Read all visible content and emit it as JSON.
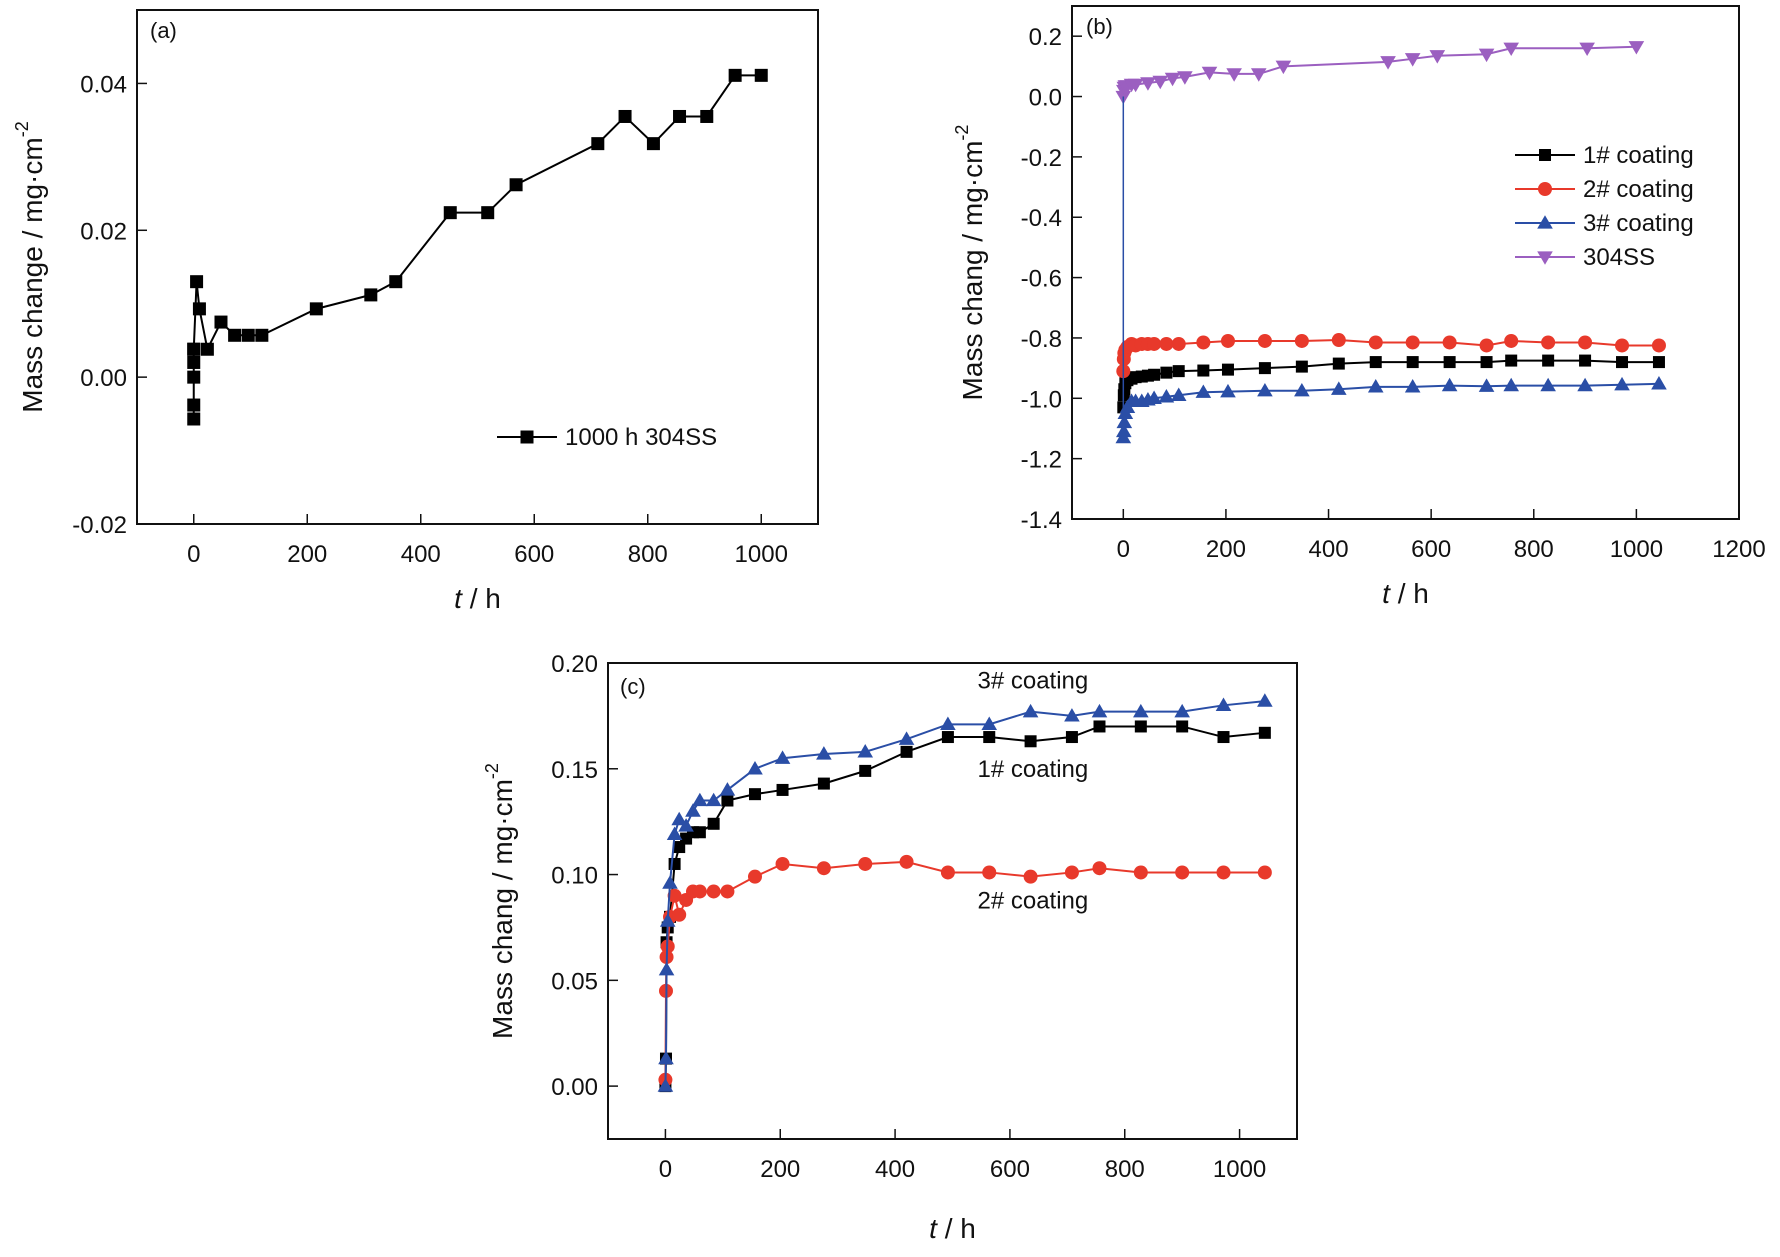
{
  "chart_data": [
    {
      "id": "a",
      "type": "line",
      "panel_label": "(a)",
      "xlabel_italic": "t",
      "xlabel_rest": " / h",
      "ylabel": "Mass change / mg·cm",
      "ylabel_sup": "-2",
      "xlim": [
        -100,
        1100
      ],
      "ylim": [
        -0.02,
        0.05
      ],
      "xticks": [
        0,
        200,
        400,
        600,
        800,
        1000
      ],
      "xtick_labels": [
        "0",
        "200",
        "400",
        "600",
        "800",
        "1000"
      ],
      "yticks": [
        -0.02,
        0.0,
        0.02,
        0.04
      ],
      "ytick_labels": [
        "-0.02",
        "0.00",
        "0.02",
        "0.04"
      ],
      "grid": false,
      "legend_position": "bottom-right",
      "series": [
        {
          "name": "1000 h 304SS",
          "color": "#000000",
          "marker": "square",
          "x": [
            0,
            0,
            0,
            0,
            0,
            0,
            5,
            10,
            24,
            48,
            72,
            96,
            120,
            216,
            312,
            356,
            452,
            518,
            568,
            712,
            760,
            810,
            856,
            904,
            954,
            1000
          ],
          "y": [
            -0.0057,
            -0.0038,
            0.0,
            0.002,
            0.0038,
            0.0038,
            0.013,
            0.0093,
            0.0038,
            0.0075,
            0.0057,
            0.0057,
            0.0057,
            0.0093,
            0.0112,
            0.013,
            0.0224,
            0.0224,
            0.0262,
            0.0318,
            0.0355,
            0.0318,
            0.0355,
            0.0355,
            0.0411,
            0.0411
          ]
        }
      ]
    },
    {
      "id": "b",
      "type": "line",
      "panel_label": "(b)",
      "xlabel_italic": "t",
      "xlabel_rest": " / h",
      "ylabel": "Mass chang / mg·cm",
      "ylabel_sup": "-2",
      "xlim": [
        -100,
        1200
      ],
      "ylim": [
        -1.4,
        0.3
      ],
      "xticks": [
        0,
        200,
        400,
        600,
        800,
        1000,
        1200
      ],
      "xtick_labels": [
        "0",
        "200",
        "400",
        "600",
        "800",
        "1000",
        "1200"
      ],
      "yticks": [
        -1.4,
        -1.2,
        -1.0,
        -0.8,
        -0.6,
        -0.4,
        -0.2,
        0.0,
        0.2
      ],
      "ytick_labels": [
        "-1.4",
        "-1.2",
        "-1.0",
        "-0.8",
        "-0.6",
        "-0.4",
        "-0.2",
        "0.0",
        "0.2"
      ],
      "grid": false,
      "legend_position": "center-right",
      "series": [
        {
          "name": "1# coating",
          "color": "#000000",
          "marker": "square",
          "x": [
            0,
            1,
            2,
            4,
            8,
            16,
            24,
            36,
            48,
            60,
            84,
            108,
            156,
            204,
            276,
            348,
            420,
            492,
            564,
            636,
            708,
            756,
            828,
            900,
            972,
            1044
          ],
          "y": [
            -1.03,
            -0.99,
            -0.97,
            -0.95,
            -0.94,
            -0.935,
            -0.93,
            -0.928,
            -0.925,
            -0.922,
            -0.915,
            -0.91,
            -0.908,
            -0.905,
            -0.9,
            -0.895,
            -0.885,
            -0.88,
            -0.88,
            -0.88,
            -0.88,
            -0.875,
            -0.875,
            -0.875,
            -0.88,
            -0.88
          ]
        },
        {
          "name": "2# coating",
          "color": "#e8392b",
          "marker": "circle",
          "x": [
            0,
            1,
            2,
            4,
            8,
            16,
            24,
            36,
            48,
            60,
            84,
            108,
            156,
            204,
            276,
            348,
            420,
            492,
            564,
            636,
            708,
            756,
            828,
            900,
            972,
            1044
          ],
          "y": [
            -0.91,
            -0.87,
            -0.85,
            -0.84,
            -0.83,
            -0.82,
            -0.825,
            -0.82,
            -0.82,
            -0.82,
            -0.82,
            -0.82,
            -0.815,
            -0.81,
            -0.81,
            -0.81,
            -0.807,
            -0.815,
            -0.815,
            -0.815,
            -0.825,
            -0.81,
            -0.815,
            -0.815,
            -0.825,
            -0.825
          ]
        },
        {
          "name": "3# coating",
          "color": "#2a4ea6",
          "marker": "triangle-up",
          "x": [
            0,
            1,
            2,
            4,
            8,
            16,
            24,
            36,
            48,
            60,
            84,
            108,
            156,
            204,
            276,
            348,
            420,
            492,
            564,
            636,
            708,
            756,
            828,
            900,
            972,
            1044
          ],
          "y": [
            -1.13,
            -1.11,
            -1.08,
            -1.05,
            -1.03,
            -1.01,
            -1.01,
            -1.01,
            -1.005,
            -1.0,
            -0.995,
            -0.99,
            -0.98,
            -0.978,
            -0.975,
            -0.975,
            -0.97,
            -0.962,
            -0.962,
            -0.958,
            -0.96,
            -0.958,
            -0.958,
            -0.958,
            -0.955,
            -0.952
          ]
        },
        {
          "name": "304SS",
          "color": "#9b5fc0",
          "marker": "triangle-down",
          "x": [
            0,
            1,
            2,
            4,
            8,
            16,
            24,
            48,
            72,
            96,
            120,
            168,
            216,
            264,
            312,
            516,
            564,
            612,
            708,
            756,
            904,
            1000
          ],
          "y": [
            0.0,
            0.02,
            0.03,
            0.035,
            0.035,
            0.04,
            0.04,
            0.045,
            0.05,
            0.06,
            0.065,
            0.08,
            0.075,
            0.075,
            0.1,
            0.115,
            0.125,
            0.135,
            0.14,
            0.16,
            0.16,
            0.165
          ]
        }
      ]
    },
    {
      "id": "c",
      "type": "line",
      "panel_label": "(c)",
      "xlabel_italic": "t",
      "xlabel_rest": " / h",
      "ylabel": "Mass chang / mg·cm",
      "ylabel_sup": "-2",
      "xlim": [
        -100,
        1100
      ],
      "ylim": [
        -0.025,
        0.2
      ],
      "xticks": [
        0,
        200,
        400,
        600,
        800,
        1000
      ],
      "xtick_labels": [
        "0",
        "200",
        "400",
        "600",
        "800",
        "1000"
      ],
      "yticks": [
        0.0,
        0.05,
        0.1,
        0.15,
        0.2
      ],
      "ytick_labels": [
        "0.00",
        "0.05",
        "0.10",
        "0.15",
        "0.20"
      ],
      "grid": false,
      "annotations": [
        {
          "text": "3# coating",
          "x": 640,
          "y": 0.188
        },
        {
          "text": "1# coating",
          "x": 640,
          "y": 0.146
        },
        {
          "text": "2# coating",
          "x": 640,
          "y": 0.084
        }
      ],
      "series": [
        {
          "name": "1# coating",
          "color": "#000000",
          "marker": "square",
          "x": [
            0,
            1,
            2,
            4,
            8,
            16,
            24,
            36,
            48,
            60,
            84,
            108,
            156,
            204,
            276,
            348,
            420,
            492,
            564,
            636,
            708,
            756,
            828,
            900,
            972,
            1044
          ],
          "y": [
            0.0,
            0.013,
            0.068,
            0.075,
            0.08,
            0.105,
            0.113,
            0.117,
            0.12,
            0.12,
            0.124,
            0.135,
            0.138,
            0.14,
            0.143,
            0.149,
            0.158,
            0.165,
            0.165,
            0.163,
            0.165,
            0.17,
            0.17,
            0.17,
            0.165,
            0.167
          ]
        },
        {
          "name": "2# coating",
          "color": "#e8392b",
          "marker": "circle",
          "x": [
            0,
            1,
            2,
            4,
            8,
            16,
            24,
            36,
            48,
            60,
            84,
            108,
            156,
            204,
            276,
            348,
            420,
            492,
            564,
            636,
            708,
            756,
            828,
            900,
            972,
            1044
          ],
          "y": [
            0.003,
            0.045,
            0.061,
            0.066,
            0.08,
            0.09,
            0.081,
            0.088,
            0.092,
            0.092,
            0.092,
            0.092,
            0.099,
            0.105,
            0.103,
            0.105,
            0.106,
            0.101,
            0.101,
            0.099,
            0.101,
            0.103,
            0.101,
            0.101,
            0.101,
            0.101
          ]
        },
        {
          "name": "3# coating",
          "color": "#2a4ea6",
          "marker": "triangle-up",
          "x": [
            0,
            1,
            2,
            4,
            8,
            16,
            24,
            36,
            48,
            60,
            84,
            108,
            156,
            204,
            276,
            348,
            420,
            492,
            564,
            636,
            708,
            756,
            828,
            900,
            972,
            1044
          ],
          "y": [
            0.0,
            0.013,
            0.055,
            0.078,
            0.096,
            0.119,
            0.126,
            0.123,
            0.13,
            0.135,
            0.135,
            0.14,
            0.15,
            0.155,
            0.157,
            0.158,
            0.164,
            0.171,
            0.171,
            0.177,
            0.175,
            0.177,
            0.177,
            0.177,
            0.18,
            0.182
          ]
        }
      ]
    }
  ]
}
